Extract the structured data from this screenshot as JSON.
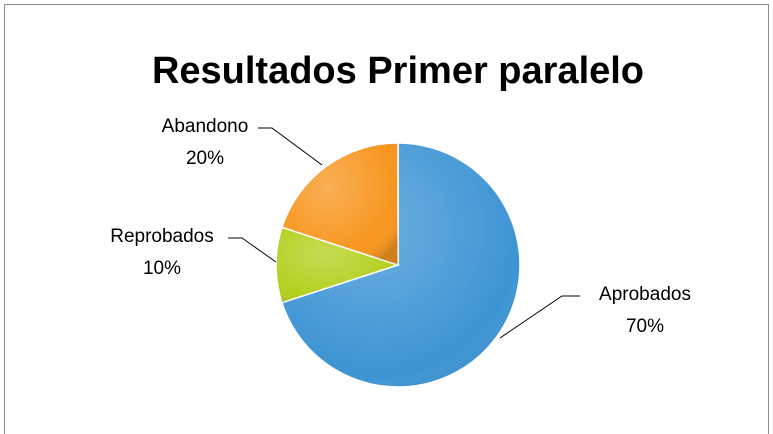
{
  "chart_data": {
    "type": "pie",
    "title": "Resultados Primer paralelo",
    "categories": [
      "Aprobados",
      "Reprobados",
      "Abandono"
    ],
    "values": [
      70,
      10,
      20
    ],
    "value_labels": [
      "70%",
      "10%",
      "20%"
    ],
    "colors": [
      "#3d94d4",
      "#b3cf1c",
      "#f7951d"
    ]
  }
}
